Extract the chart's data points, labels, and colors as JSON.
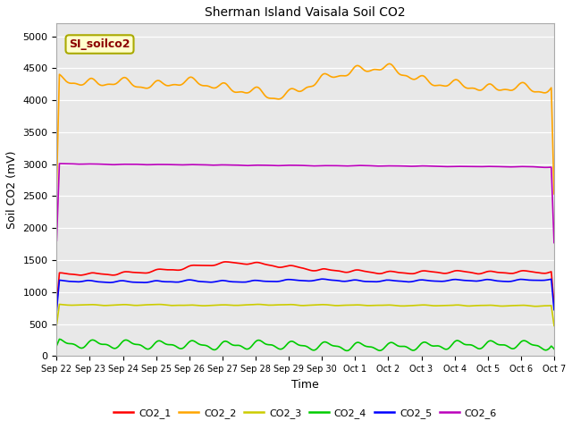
{
  "title": "Sherman Island Vaisala Soil CO2",
  "xlabel": "Time",
  "ylabel": "Soil CO2 (mV)",
  "annotation_text": "SI_soilco2",
  "annotation_color": "#8B0000",
  "annotation_bg": "#FFFFCC",
  "annotation_edge": "#AAAA00",
  "fig_bg_color": "#FFFFFF",
  "plot_bg_color": "#E8E8E8",
  "ylim": [
    0,
    5200
  ],
  "yticks": [
    0,
    500,
    1000,
    1500,
    2000,
    2500,
    3000,
    3500,
    4000,
    4500,
    5000
  ],
  "xtick_labels": [
    "Sep 22",
    "Sep 23",
    "Sep 24",
    "Sep 25",
    "Sep 26",
    "Sep 27",
    "Sep 28",
    "Sep 29",
    "Sep 30",
    "Oct 1",
    "Oct 2",
    "Oct 3",
    "Oct 4",
    "Oct 5",
    "Oct 6",
    "Oct 7"
  ],
  "lines": {
    "CO2_1": {
      "color": "#FF0000",
      "lw": 1.2,
      "base": 1280,
      "amp": 130
    },
    "CO2_2": {
      "color": "#FFA500",
      "lw": 1.2,
      "base": 4250,
      "amp": 220
    },
    "CO2_3": {
      "color": "#CCCC00",
      "lw": 1.2,
      "base": 800,
      "amp": 55
    },
    "CO2_4": {
      "color": "#00CC00",
      "lw": 1.2,
      "base": 170,
      "amp": 110
    },
    "CO2_5": {
      "color": "#0000FF",
      "lw": 1.2,
      "base": 1160,
      "amp": 90
    },
    "CO2_6": {
      "color": "#BB00BB",
      "lw": 1.2,
      "base": 3005,
      "amp": 40
    }
  },
  "legend_labels": [
    "CO2_1",
    "CO2_2",
    "CO2_3",
    "CO2_4",
    "CO2_5",
    "CO2_6"
  ],
  "legend_colors": [
    "#FF0000",
    "#FFA500",
    "#CCCC00",
    "#00CC00",
    "#0000FF",
    "#BB00BB"
  ]
}
